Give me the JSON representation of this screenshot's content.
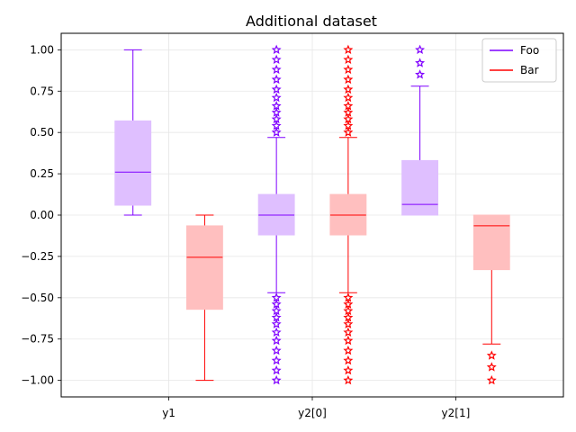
{
  "chart_data": {
    "type": "box",
    "title": "Additional dataset",
    "xlabel": "",
    "ylabel": "",
    "ylim": [
      -1.1,
      1.1
    ],
    "yticks": [
      1.0,
      0.75,
      0.5,
      0.25,
      0.0,
      -0.25,
      -0.5,
      -0.75,
      -1.0
    ],
    "ytick_labels": [
      "1.00",
      "0.75",
      "0.50",
      "0.25",
      "0.00",
      "−0.25",
      "−0.50",
      "−0.75",
      "−1.00"
    ],
    "categories": [
      "y1",
      "y2[0]",
      "y2[1]"
    ],
    "grid": true,
    "legend_position": "top-right",
    "series": [
      {
        "name": "Foo",
        "color": "#7f00ff",
        "fill": "#dfbfff",
        "boxes": [
          {
            "category": "y1",
            "whislo": 0.0,
            "q1": 0.06,
            "median": 0.26,
            "q3": 0.57,
            "whishi": 1.0,
            "fliers": []
          },
          {
            "category": "y2[0]",
            "whislo": -0.47,
            "q1": -0.12,
            "median": 0.0,
            "q3": 0.125,
            "whishi": 0.47,
            "fliers": [
              0.5,
              0.54,
              0.58,
              0.62,
              0.66,
              0.71,
              0.76,
              0.82,
              0.88,
              0.94,
              1.0,
              -0.5,
              -0.54,
              -0.58,
              -0.62,
              -0.66,
              -0.71,
              -0.76,
              -0.82,
              -0.88,
              -0.94,
              -1.0
            ]
          },
          {
            "category": "y2[1]",
            "whislo": 0.0,
            "q1": 0.0,
            "median": 0.065,
            "q3": 0.33,
            "whishi": 0.78,
            "fliers": [
              0.85,
              0.92,
              1.0
            ]
          }
        ]
      },
      {
        "name": "Bar",
        "color": "#ff0000",
        "fill": "#ffbfbf",
        "boxes": [
          {
            "category": "y1",
            "whislo": -1.0,
            "q1": -0.57,
            "median": -0.255,
            "q3": -0.065,
            "whishi": 0.0,
            "fliers": []
          },
          {
            "category": "y2[0]",
            "whislo": -0.47,
            "q1": -0.12,
            "median": 0.0,
            "q3": 0.125,
            "whishi": 0.47,
            "fliers": [
              0.5,
              0.54,
              0.58,
              0.62,
              0.66,
              0.71,
              0.76,
              0.82,
              0.88,
              0.94,
              1.0,
              -0.5,
              -0.54,
              -0.58,
              -0.62,
              -0.66,
              -0.71,
              -0.76,
              -0.82,
              -0.88,
              -0.94,
              -1.0
            ]
          },
          {
            "category": "y2[1]",
            "whislo": -0.78,
            "q1": -0.33,
            "median": -0.065,
            "q3": 0.0,
            "whishi": 0.0,
            "fliers": [
              -0.85,
              -0.92,
              -1.0
            ]
          }
        ]
      }
    ]
  }
}
